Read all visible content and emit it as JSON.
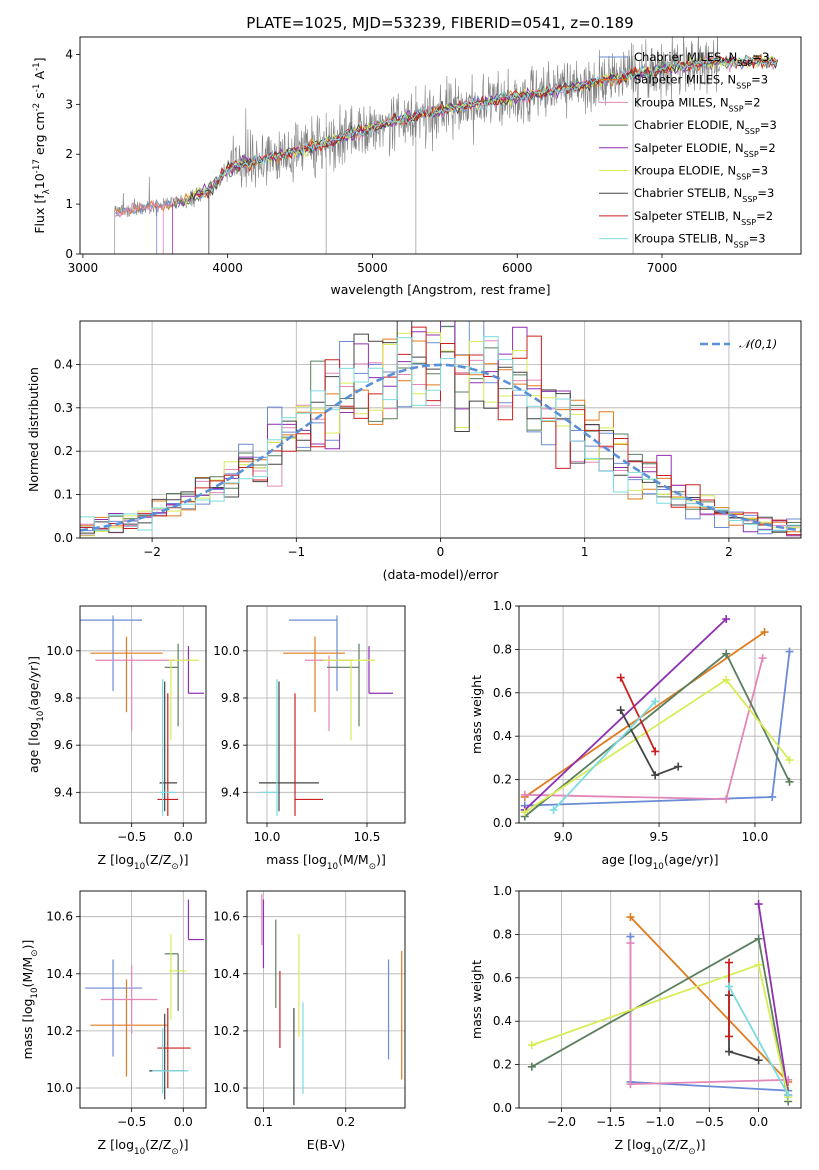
{
  "colors": {
    "Chabrier MILES": "#6b8bd6",
    "Salpeter MILES": "#e07b1f",
    "Kroupa MILES": "#e287b9",
    "Chabrier ELODIE": "#5b7f5e",
    "Salpeter ELODIE": "#8f2fb2",
    "Kroupa ELODIE": "#d8ec55",
    "Chabrier STELIB": "#444444",
    "Salpeter STELIB": "#cc2020",
    "Kroupa STELIB": "#7ddbe0",
    "data": "#808080",
    "normal": "#5b8fd6"
  },
  "chart_data": [
    {
      "id": "spectrum",
      "type": "line",
      "title": "PLATE=1025, MJD=53239, FIBERID=0541, z=0.189",
      "xlabel": "wavelength [Angstrom, rest frame]",
      "ylabel": "Flux [f$_\\lambda$10$^{-17}$ erg cm$^{-2}$ s$^{-1}$ A$^{-1}$]",
      "xlim": [
        2980,
        7960
      ],
      "ylim": [
        0,
        4.35
      ],
      "xticks": [
        3000,
        4000,
        5000,
        6000,
        7000
      ],
      "yticks": [
        0,
        1,
        2,
        3,
        4
      ],
      "legend_position": "top-right",
      "continuum_points": [
        [
          3220,
          0.85
        ],
        [
          3500,
          0.95
        ],
        [
          3700,
          1.05
        ],
        [
          3900,
          1.35
        ],
        [
          4000,
          1.7
        ],
        [
          4300,
          1.95
        ],
        [
          4600,
          2.15
        ],
        [
          4900,
          2.45
        ],
        [
          5200,
          2.7
        ],
        [
          5500,
          2.9
        ],
        [
          5800,
          3.05
        ],
        [
          6100,
          3.2
        ],
        [
          6400,
          3.35
        ],
        [
          6700,
          3.55
        ],
        [
          7000,
          3.7
        ],
        [
          7300,
          3.85
        ],
        [
          7600,
          3.85
        ]
      ],
      "series": [
        {
          "name": "Chabrier MILES, N$_{SSP}$=3"
        },
        {
          "name": "Salpeter MILES, N$_{SSP}$=3"
        },
        {
          "name": "Kroupa MILES, N$_{SSP}$=2"
        },
        {
          "name": "Chabrier ELODIE, N$_{SSP}$=3"
        },
        {
          "name": "Salpeter ELODIE, N$_{SSP}$=2"
        },
        {
          "name": "Kroupa ELODIE, N$_{SSP}$=3"
        },
        {
          "name": "Chabrier STELIB, N$_{SSP}$=3"
        },
        {
          "name": "Salpeter STELIB, N$_{SSP}$=2"
        },
        {
          "name": "Kroupa STELIB, N$_{SSP}$=3"
        }
      ]
    },
    {
      "id": "residuals",
      "type": "histogram",
      "xlabel": "(data-model)/error",
      "ylabel": "Normed distribution",
      "xlim": [
        -2.5,
        2.5
      ],
      "ylim": [
        0,
        0.5
      ],
      "xticks": [
        -2,
        -1,
        0,
        1,
        2
      ],
      "yticks": [
        0,
        0.1,
        0.2,
        0.3,
        0.4
      ],
      "grid": true,
      "legend_position": "top-right",
      "reference_curve": "$\\mathcal{N}(0,1)$",
      "bin_width": 0.1
    },
    {
      "id": "age-vs-Z",
      "type": "scatter",
      "xlabel": "Z [log$_{10}$(Z/Z$_\\odot$)]",
      "ylabel": "age  [log$_{10}$(age/yr)]",
      "xlim": [
        -1.0,
        0.22
      ],
      "ylim": [
        9.27,
        10.19
      ],
      "xticks": [
        -0.5,
        0.0
      ],
      "yticks": [
        9.4,
        9.6,
        9.8,
        10.0
      ],
      "grid": true,
      "points": [
        {
          "series": "Chabrier MILES",
          "x": -0.68,
          "y": 10.13,
          "xerr": [
            0.43,
            0.28
          ],
          "yerr": [
            0.3,
            0.02
          ]
        },
        {
          "series": "Salpeter MILES",
          "x": -0.55,
          "y": 9.99,
          "xerr": [
            0.35,
            0.35
          ],
          "yerr": [
            0.25,
            0.07
          ]
        },
        {
          "series": "Kroupa MILES",
          "x": -0.5,
          "y": 9.96,
          "xerr": [
            0.35,
            0.42
          ],
          "yerr": [
            0.3,
            0.02
          ]
        },
        {
          "series": "Chabrier ELODIE",
          "x": -0.05,
          "y": 9.93,
          "xerr": [
            0.13,
            0.0
          ],
          "yerr": [
            0.25,
            0.1
          ]
        },
        {
          "series": "Salpeter ELODIE",
          "x": 0.05,
          "y": 9.82,
          "xerr": [
            0.0,
            0.15
          ],
          "yerr": [
            0.0,
            0.2
          ]
        },
        {
          "series": "Kroupa ELODIE",
          "x": -0.12,
          "y": 9.96,
          "xerr": [
            0.02,
            0.27
          ],
          "yerr": [
            0.34,
            0.0
          ]
        },
        {
          "series": "Chabrier STELIB",
          "x": -0.18,
          "y": 9.44,
          "xerr": [
            0.05,
            0.12
          ],
          "yerr": [
            0.12,
            0.43
          ]
        },
        {
          "series": "Salpeter STELIB",
          "x": -0.15,
          "y": 9.37,
          "xerr": [
            0.1,
            0.1
          ],
          "yerr": [
            0.07,
            0.45
          ]
        },
        {
          "series": "Kroupa STELIB",
          "x": -0.2,
          "y": 9.4,
          "xerr": [
            0.03,
            0.12
          ],
          "yerr": [
            0.1,
            0.48
          ]
        }
      ]
    },
    {
      "id": "age-vs-mass",
      "type": "scatter",
      "xlabel": "mass [log$_{10}$(M/M$_\\odot$)]",
      "ylabel": "",
      "xlim": [
        9.9,
        10.69
      ],
      "ylim": [
        9.27,
        10.19
      ],
      "xticks": [
        10.0,
        10.5
      ],
      "yticks": [
        9.4,
        9.6,
        9.8,
        10.0
      ],
      "grid": true,
      "points": [
        {
          "series": "Chabrier MILES",
          "x": 10.35,
          "y": 10.13,
          "xerr": [
            0.24,
            0.0
          ],
          "yerr": [
            0.3,
            0.02
          ]
        },
        {
          "series": "Salpeter MILES",
          "x": 10.24,
          "y": 9.99,
          "xerr": [
            0.16,
            0.15
          ],
          "yerr": [
            0.25,
            0.07
          ]
        },
        {
          "series": "Kroupa MILES",
          "x": 10.31,
          "y": 9.96,
          "xerr": [
            0.12,
            0.12
          ],
          "yerr": [
            0.3,
            0.02
          ]
        },
        {
          "series": "Chabrier ELODIE",
          "x": 10.46,
          "y": 9.93,
          "xerr": [
            0.16,
            0.0
          ],
          "yerr": [
            0.25,
            0.1
          ]
        },
        {
          "series": "Salpeter ELODIE",
          "x": 10.51,
          "y": 9.82,
          "xerr": [
            0.0,
            0.12
          ],
          "yerr": [
            0.0,
            0.2
          ]
        },
        {
          "series": "Kroupa ELODIE",
          "x": 10.42,
          "y": 9.96,
          "xerr": [
            0.14,
            0.12
          ],
          "yerr": [
            0.34,
            0.0
          ]
        },
        {
          "series": "Chabrier STELIB",
          "x": 10.06,
          "y": 9.44,
          "xerr": [
            0.1,
            0.2
          ],
          "yerr": [
            0.12,
            0.43
          ]
        },
        {
          "series": "Salpeter STELIB",
          "x": 10.14,
          "y": 9.37,
          "xerr": [
            0.0,
            0.14
          ],
          "yerr": [
            0.07,
            0.45
          ]
        },
        {
          "series": "Kroupa STELIB",
          "x": 10.05,
          "y": 9.4,
          "xerr": [
            0.08,
            0.0
          ],
          "yerr": [
            0.1,
            0.48
          ]
        }
      ]
    },
    {
      "id": "weight-vs-age",
      "type": "line",
      "xlabel": "age  [log$_{10}$(age/yr)]",
      "ylabel": "mass weight",
      "xlim": [
        8.77,
        10.24
      ],
      "ylim": [
        0,
        1.0
      ],
      "xticks": [
        9.0,
        9.5,
        10.0
      ],
      "yticks": [
        0.0,
        0.2,
        0.4,
        0.6,
        0.8,
        1.0
      ],
      "grid": true,
      "series": [
        {
          "series": "Chabrier MILES",
          "x": [
            8.8,
            10.09,
            10.18
          ],
          "y": [
            0.08,
            0.12,
            0.79
          ]
        },
        {
          "series": "Salpeter MILES",
          "x": [
            8.8,
            10.05
          ],
          "y": [
            0.12,
            0.88
          ]
        },
        {
          "series": "Kroupa MILES",
          "x": [
            8.8,
            9.85,
            10.04
          ],
          "y": [
            0.13,
            0.11,
            0.76
          ]
        },
        {
          "series": "Chabrier ELODIE",
          "x": [
            8.8,
            9.85,
            10.18
          ],
          "y": [
            0.03,
            0.78,
            0.19
          ]
        },
        {
          "series": "Salpeter ELODIE",
          "x": [
            8.8,
            9.85
          ],
          "y": [
            0.06,
            0.94
          ]
        },
        {
          "series": "Kroupa ELODIE",
          "x": [
            8.8,
            9.85,
            10.18
          ],
          "y": [
            0.05,
            0.66,
            0.29
          ]
        },
        {
          "series": "Chabrier STELIB",
          "x": [
            9.3,
            9.48,
            9.6
          ],
          "y": [
            0.52,
            0.22,
            0.26
          ]
        },
        {
          "series": "Salpeter STELIB",
          "x": [
            9.3,
            9.48
          ],
          "y": [
            0.67,
            0.33
          ]
        },
        {
          "series": "Kroupa STELIB",
          "x": [
            8.95,
            9.48
          ],
          "y": [
            0.06,
            0.56
          ]
        }
      ]
    },
    {
      "id": "mass-vs-Z",
      "type": "scatter",
      "xlabel": "Z [log$_{10}$(Z/Z$_\\odot$)]",
      "ylabel": "mass [log$_{10}$(M/M$_\\odot$)]",
      "xlim": [
        -1.0,
        0.22
      ],
      "ylim": [
        9.93,
        10.69
      ],
      "xticks": [
        -0.5,
        0.0
      ],
      "yticks": [
        10.0,
        10.2,
        10.4,
        10.6
      ],
      "grid": true,
      "points": [
        {
          "series": "Chabrier MILES",
          "x": -0.68,
          "y": 10.35,
          "xerr": [
            0.27,
            0.28
          ],
          "yerr": [
            0.24,
            0.1
          ]
        },
        {
          "series": "Salpeter MILES",
          "x": -0.55,
          "y": 10.22,
          "xerr": [
            0.35,
            0.4
          ],
          "yerr": [
            0.18,
            0.16
          ]
        },
        {
          "series": "Kroupa MILES",
          "x": -0.5,
          "y": 10.31,
          "xerr": [
            0.3,
            0.25
          ],
          "yerr": [
            0.12,
            0.12
          ]
        },
        {
          "series": "Chabrier ELODIE",
          "x": -0.05,
          "y": 10.47,
          "xerr": [
            0.13,
            0.0
          ],
          "yerr": [
            0.2,
            0.0
          ]
        },
        {
          "series": "Salpeter ELODIE",
          "x": 0.05,
          "y": 10.52,
          "xerr": [
            0.0,
            0.15
          ],
          "yerr": [
            0.0,
            0.14
          ]
        },
        {
          "series": "Kroupa ELODIE",
          "x": -0.12,
          "y": 10.41,
          "xerr": [
            0.02,
            0.15
          ],
          "yerr": [
            0.17,
            0.13
          ]
        },
        {
          "series": "Chabrier STELIB",
          "x": -0.18,
          "y": 10.06,
          "xerr": [
            0.15,
            0.2
          ],
          "yerr": [
            0.1,
            0.2
          ]
        },
        {
          "series": "Salpeter STELIB",
          "x": -0.15,
          "y": 10.14,
          "xerr": [
            0.1,
            0.22
          ],
          "yerr": [
            0.14,
            0.14
          ]
        },
        {
          "series": "Kroupa STELIB",
          "x": -0.2,
          "y": 10.06,
          "xerr": [
            0.1,
            0.25
          ],
          "yerr": [
            0.08,
            0.15
          ]
        }
      ]
    },
    {
      "id": "mass-vs-EBV",
      "type": "scatter",
      "xlabel": "E(B-V)",
      "ylabel": "",
      "xlim": [
        0.08,
        0.272
      ],
      "ylim": [
        9.93,
        10.69
      ],
      "xticks": [
        0.1,
        0.2
      ],
      "yticks": [
        10.0,
        10.2,
        10.4,
        10.6
      ],
      "grid": true,
      "points": [
        {
          "series": "Chabrier MILES",
          "x": 0.252,
          "y": 10.3,
          "yerr": [
            0.2,
            0.15
          ]
        },
        {
          "series": "Salpeter MILES",
          "x": 0.268,
          "y": 10.25,
          "yerr": [
            0.22,
            0.23
          ]
        },
        {
          "series": "Kroupa MILES",
          "x": 0.098,
          "y": 10.6,
          "yerr": [
            0.1,
            0.08
          ]
        },
        {
          "series": "Chabrier ELODIE",
          "x": 0.115,
          "y": 10.44,
          "yerr": [
            0.16,
            0.15
          ]
        },
        {
          "series": "Salpeter ELODIE",
          "x": 0.1,
          "y": 10.55,
          "yerr": [
            0.13,
            0.11
          ]
        },
        {
          "series": "Kroupa ELODIE",
          "x": 0.143,
          "y": 10.38,
          "yerr": [
            0.2,
            0.16
          ]
        },
        {
          "series": "Chabrier STELIB",
          "x": 0.137,
          "y": 10.09,
          "yerr": [
            0.15,
            0.19
          ]
        },
        {
          "series": "Salpeter STELIB",
          "x": 0.12,
          "y": 10.27,
          "yerr": [
            0.13,
            0.14
          ]
        },
        {
          "series": "Kroupa STELIB",
          "x": 0.148,
          "y": 10.15,
          "yerr": [
            0.17,
            0.15
          ]
        }
      ]
    },
    {
      "id": "weight-vs-Z",
      "type": "line",
      "xlabel": "Z [log$_{10}$(Z/Z$_\\odot$)]",
      "ylabel": "mass weight",
      "xlim": [
        -2.43,
        0.43
      ],
      "ylim": [
        0,
        1.0
      ],
      "xticks": [
        -2.0,
        -1.5,
        -1.0,
        -0.5,
        0.0
      ],
      "yticks": [
        0.0,
        0.2,
        0.4,
        0.6,
        0.8,
        1.0
      ],
      "grid": true,
      "series": [
        {
          "series": "Chabrier MILES",
          "x": [
            -1.3,
            -1.3,
            0.3
          ],
          "y": [
            0.79,
            0.12,
            0.08
          ]
        },
        {
          "series": "Salpeter MILES",
          "x": [
            -1.3,
            0.3
          ],
          "y": [
            0.88,
            0.12
          ]
        },
        {
          "series": "Kroupa MILES",
          "x": [
            -1.3,
            -1.3,
            0.3
          ],
          "y": [
            0.76,
            0.11,
            0.13
          ]
        },
        {
          "series": "Chabrier ELODIE",
          "x": [
            -2.3,
            0.0,
            0.3
          ],
          "y": [
            0.19,
            0.78,
            0.03
          ]
        },
        {
          "series": "Salpeter ELODIE",
          "x": [
            0.0,
            0.3
          ],
          "y": [
            0.94,
            0.06
          ]
        },
        {
          "series": "Kroupa ELODIE",
          "x": [
            -2.3,
            0.0,
            0.3
          ],
          "y": [
            0.29,
            0.66,
            0.05
          ]
        },
        {
          "series": "Chabrier STELIB",
          "x": [
            -0.3,
            -0.3,
            0.0
          ],
          "y": [
            0.52,
            0.26,
            0.22
          ]
        },
        {
          "series": "Salpeter STELIB",
          "x": [
            -0.3,
            -0.3
          ],
          "y": [
            0.67,
            0.33
          ]
        },
        {
          "series": "Kroupa STELIB",
          "x": [
            -0.3,
            0.3
          ],
          "y": [
            0.56,
            0.06
          ]
        }
      ]
    }
  ]
}
